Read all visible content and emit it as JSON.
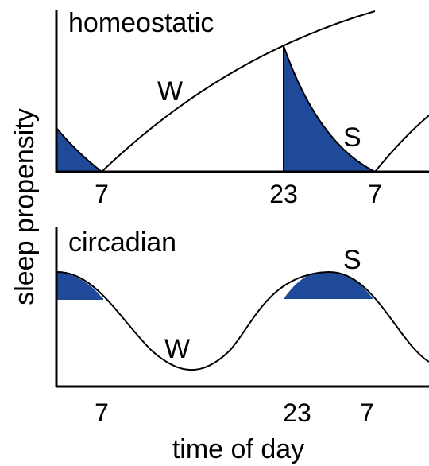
{
  "y_axis_label": "sleep propensity",
  "x_axis_label": "time of day",
  "colors": {
    "fill": "#1e4a99",
    "line": "#000000",
    "background": "#ffffff"
  },
  "panels": [
    {
      "title": "homeostatic",
      "wake_label": "W",
      "sleep_label": "S",
      "ticks": [
        "7",
        "23",
        "7"
      ]
    },
    {
      "title": "circadian",
      "wake_label": "W",
      "sleep_label": "S",
      "ticks": [
        "7",
        "23",
        "7"
      ]
    }
  ]
}
